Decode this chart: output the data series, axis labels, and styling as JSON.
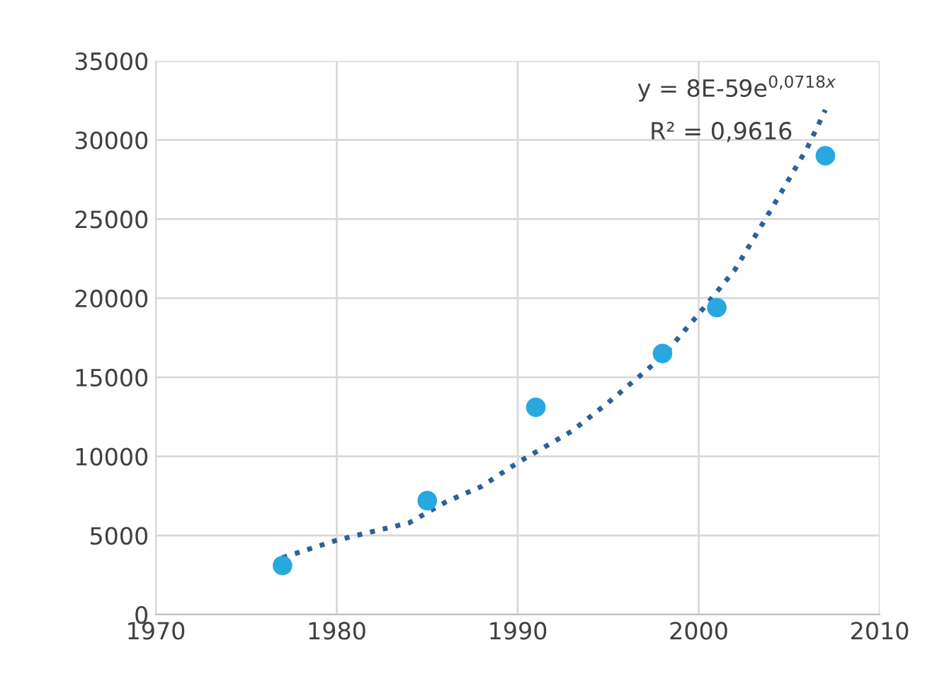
{
  "chart_data": {
    "type": "scatter",
    "xlim": [
      1970,
      2010
    ],
    "xticks": [
      1970,
      1980,
      1990,
      2000,
      2010
    ],
    "ylim": [
      0,
      35000
    ],
    "yticks": [
      0,
      5000,
      10000,
      15000,
      20000,
      25000,
      30000,
      35000
    ],
    "grid": true,
    "marker": "circle",
    "annotations": [
      "y = 8E-59e$^{0,0718x}$",
      "R² = 0,9616"
    ],
    "series": [
      {
        "color": "#29a8e0",
        "x": [
          1977,
          1985,
          1991,
          1998,
          2001,
          2007
        ],
        "values": [
          3100,
          7200,
          13100,
          16500,
          19400,
          29000
        ]
      },
      {
        "type": "line",
        "color": "#2e6095",
        "line_style": "dotted",
        "marker": "none",
        "x": [
          1977,
          1980,
          1984,
          1986,
          1988,
          1990,
          1993,
          1995,
          1998,
          2000,
          2002,
          2004,
          2006,
          2007
        ],
        "values": [
          3600,
          4700,
          5800,
          7100,
          8100,
          9600,
          11600,
          13400,
          16300,
          19000,
          21800,
          25600,
          29500,
          31900
        ]
      }
    ]
  }
}
